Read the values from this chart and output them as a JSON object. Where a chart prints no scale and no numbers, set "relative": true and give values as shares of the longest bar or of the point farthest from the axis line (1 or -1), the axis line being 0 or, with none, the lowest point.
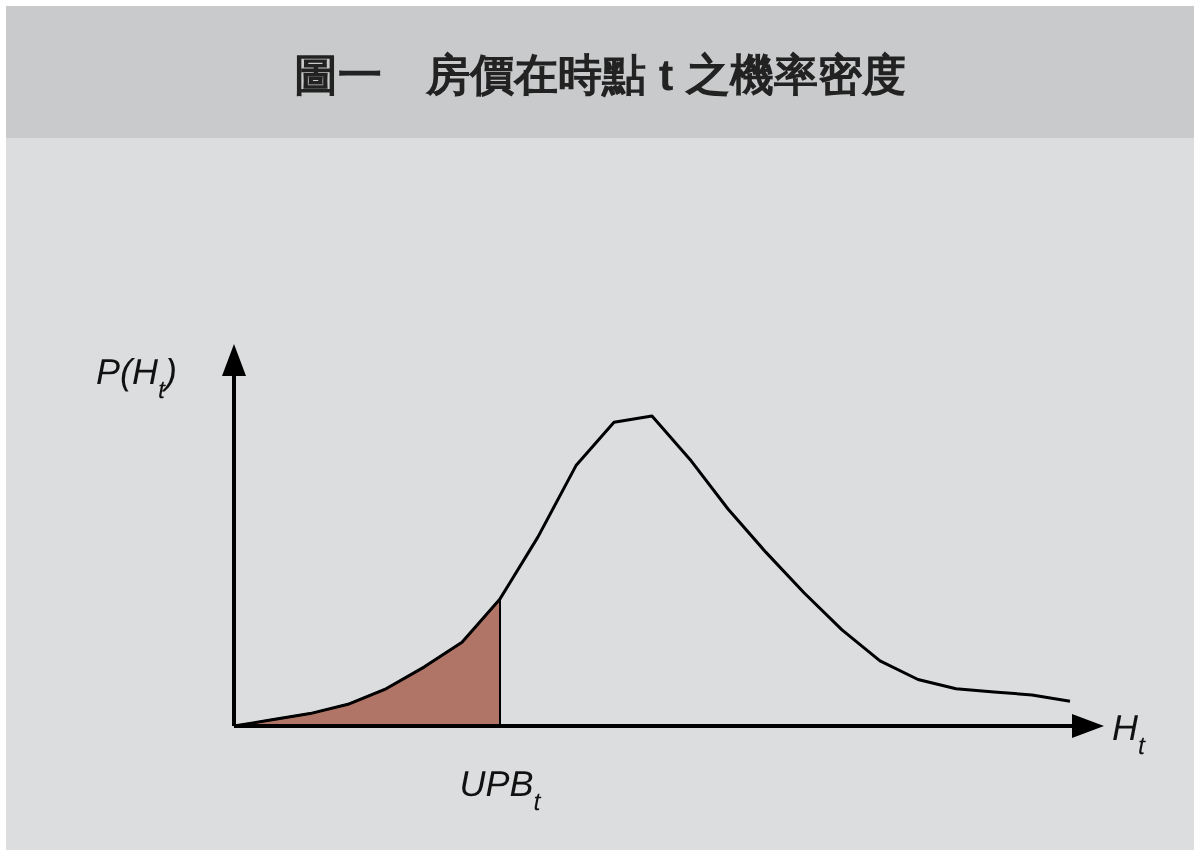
{
  "chart_data": {
    "type": "line",
    "title": "圖一　房價在時點 t 之機率密度",
    "ylabel": "P(H$_{t}$)",
    "xlabel": "H$_{t}$",
    "relative": true,
    "categories": [
      null,
      null,
      null,
      null,
      null,
      null,
      null,
      null,
      null,
      null,
      null,
      null,
      null,
      null,
      null,
      null,
      null,
      null,
      null,
      null,
      null,
      null,
      null
    ],
    "annotations": [
      "UPB$_{t}$"
    ],
    "series": [
      {
        "type": "area",
        "color": "#b07566",
        "values": [
          0,
          0.02,
          0.04,
          0.07,
          0.12,
          0.19,
          0.27,
          0.41,
          null,
          null,
          null,
          null,
          null,
          null,
          null,
          null,
          null,
          null,
          null,
          null,
          null,
          null,
          null
        ]
      },
      {
        "color": "#000000",
        "values": [
          0,
          0.02,
          0.04,
          0.07,
          0.12,
          0.19,
          0.27,
          0.41,
          0.61,
          0.84,
          0.98,
          1,
          0.86,
          0.7,
          0.56,
          0.43,
          0.31,
          0.21,
          0.15,
          0.12,
          0.11,
          0.1,
          0.08
        ]
      }
    ]
  }
}
